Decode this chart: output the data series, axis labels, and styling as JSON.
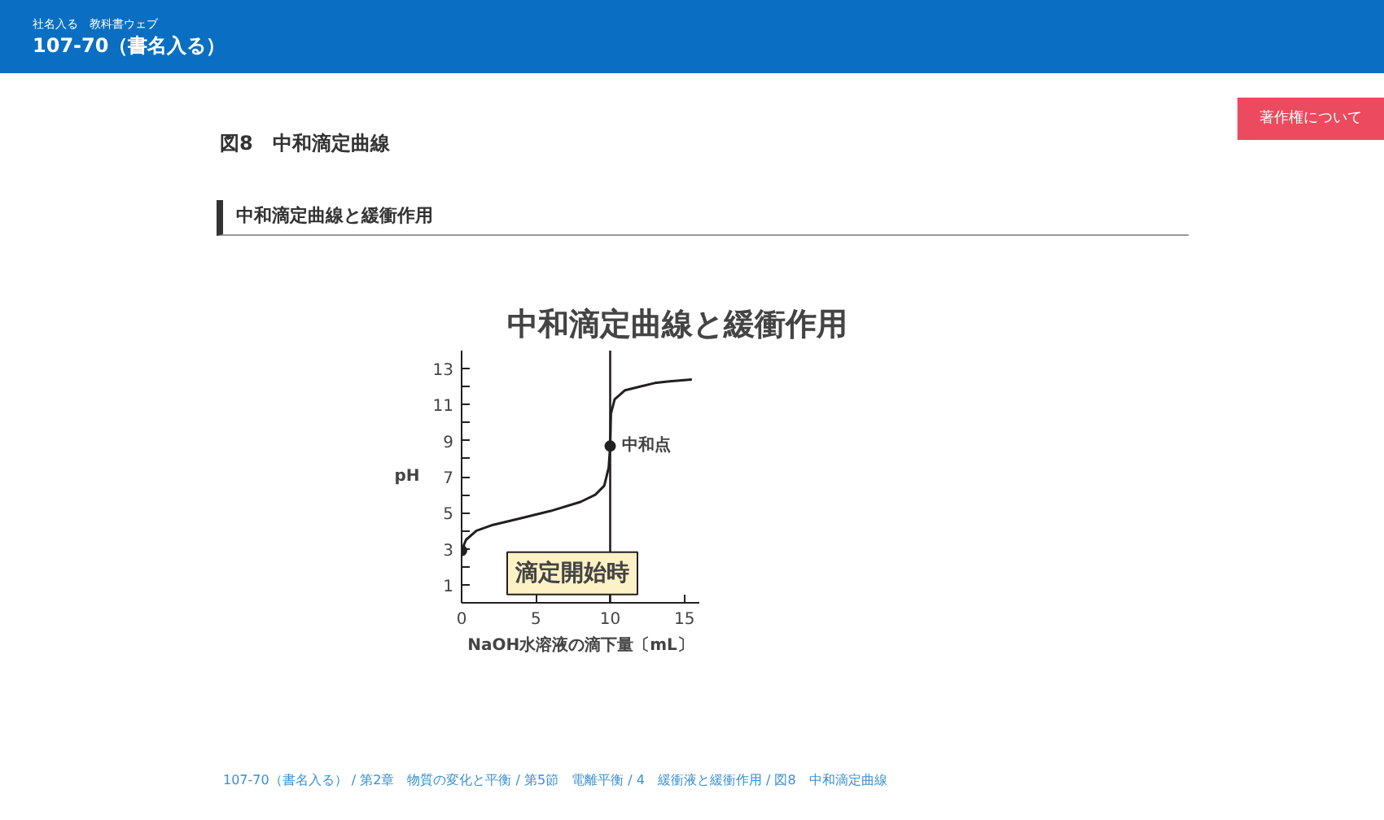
{
  "chart_data": {
    "type": "line",
    "title": "中和滴定曲線と緩衝作用",
    "xlabel": "NaOH水溶液の滴下量〔mL〕",
    "ylabel": "pH",
    "xlim": [
      0,
      16
    ],
    "ylim": [
      0,
      14
    ],
    "xticks": [
      0,
      5,
      10,
      15
    ],
    "yticks": [
      1,
      {
        "value": 2,
        "label": null
      },
      3,
      {
        "value": 4,
        "label": null
      },
      5,
      {
        "value": 6,
        "label": null
      },
      7,
      {
        "value": 8,
        "label": null
      },
      9,
      {
        "value": 10,
        "label": null
      },
      11,
      {
        "value": 12,
        "label": null
      },
      13
    ],
    "grid": false,
    "series": [
      {
        "color": "#231f20",
        "x": [
          0,
          0.3,
          1,
          2,
          4,
          6,
          8,
          9,
          9.6,
          9.9,
          10,
          10.05,
          10.3,
          11,
          12,
          13,
          14,
          15.5
        ],
        "values": [
          2.9,
          3.5,
          4.0,
          4.3,
          4.7,
          5.1,
          5.6,
          6.0,
          6.5,
          7.5,
          8.7,
          10.5,
          11.3,
          11.8,
          12.0,
          12.2,
          12.3,
          12.4
        ],
        "marker": "none"
      },
      {
        "type": "scatter",
        "color": "#231f20",
        "x": [
          0,
          10
        ],
        "values": [
          2.9,
          8.7
        ],
        "marker": "circle"
      }
    ],
    "ref_lines": [
      {
        "axis": "x",
        "value": 10,
        "color": "#231f20"
      }
    ],
    "annotations": [
      "社名入る　教科書ウェブ",
      "107-70（書名入る）",
      "図8　中和滴定曲線",
      "著作権について",
      "中和滴定曲線と緩衝作用",
      "107-70（書名入る） / 第2章　物質の変化と平衡 / 第5節　電離平衡 / 4　緩衝液と緩衝作用 / 図8　中和滴定曲線",
      {
        "text": "中和点",
        "x": 10,
        "y": 8.7
      },
      {
        "text": "滴定開始時",
        "x": 0,
        "y": 2.9
      }
    ]
  }
}
